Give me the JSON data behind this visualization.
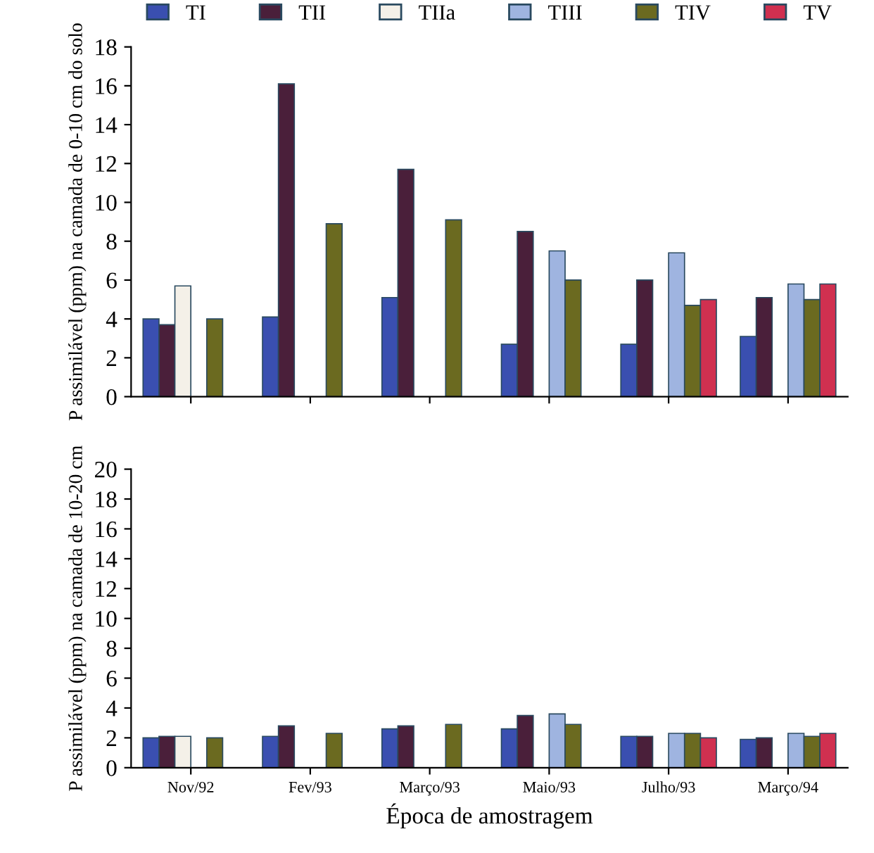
{
  "chart_data": [
    {
      "type": "bar",
      "ylabel": "P assimilável (ppm) na camada de 0-10 cm do solo",
      "categories": [
        null,
        null,
        null,
        null,
        null,
        null
      ],
      "tick_labels": "y",
      "ylim": [
        0,
        18
      ],
      "yticks": [
        0,
        2,
        4,
        6,
        8,
        10,
        12,
        14,
        16,
        18
      ],
      "legend": "top",
      "grid": false,
      "series": [
        {
          "name": "TI",
          "color": "#3a4fb0",
          "values": [
            4.0,
            4.1,
            5.1,
            2.7,
            2.7,
            3.1
          ]
        },
        {
          "name": "TII",
          "color": "#4a1f3a",
          "values": [
            3.7,
            16.1,
            11.7,
            8.5,
            6.0,
            5.1
          ]
        },
        {
          "name": "TIIa",
          "color": "#f4f0e8",
          "values": [
            5.7,
            null,
            null,
            null,
            null,
            null
          ]
        },
        {
          "name": "TIII",
          "color": "#9fb4e0",
          "values": [
            null,
            null,
            null,
            7.5,
            7.4,
            5.8
          ]
        },
        {
          "name": "TIV",
          "color": "#6b6a20",
          "values": [
            4.0,
            8.9,
            9.1,
            6.0,
            4.7,
            5.0
          ]
        },
        {
          "name": "TV",
          "color": "#d03050",
          "values": [
            null,
            null,
            null,
            null,
            5.0,
            5.8
          ]
        }
      ]
    },
    {
      "type": "bar",
      "ylabel": "P assimilável (ppm) na camada de 10-20 cm",
      "xlabel": "Época de amostragem",
      "categories": [
        "Nov/92",
        "Fev/93",
        "Março/93",
        "Maio/93",
        "Julho/93",
        "Março/94"
      ],
      "ylim": [
        0,
        20
      ],
      "yticks": [
        0,
        2,
        4,
        6,
        8,
        10,
        12,
        14,
        16,
        18,
        20
      ],
      "grid": false,
      "series": [
        {
          "color": "#3a4fb0",
          "values": [
            2.0,
            2.1,
            2.6,
            2.6,
            2.1,
            1.9
          ]
        },
        {
          "color": "#4a1f3a",
          "values": [
            2.1,
            2.8,
            2.8,
            3.5,
            2.1,
            2.0
          ]
        },
        {
          "color": "#f4f0e8",
          "values": [
            2.1,
            null,
            null,
            null,
            null,
            null
          ]
        },
        {
          "color": "#9fb4e0",
          "values": [
            null,
            null,
            null,
            3.6,
            2.3,
            2.3
          ]
        },
        {
          "color": "#6b6a20",
          "values": [
            2.0,
            2.3,
            2.9,
            2.9,
            2.3,
            2.1
          ]
        },
        {
          "color": "#d03050",
          "values": [
            null,
            null,
            null,
            null,
            2.0,
            2.3
          ]
        }
      ]
    }
  ]
}
